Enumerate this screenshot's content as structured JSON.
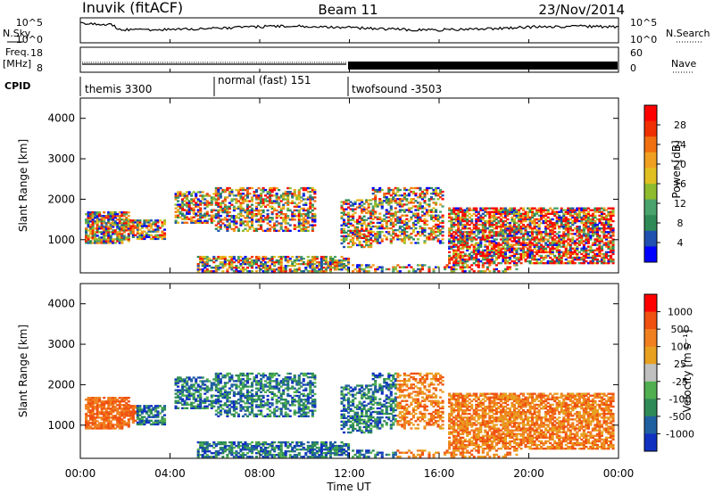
{
  "header": {
    "station": "Inuvik (fitACF)",
    "beam": "Beam 11",
    "date": "23/Nov/2014"
  },
  "summary": {
    "nsky_label": "N.Sky",
    "nsky_ticks": [
      "10^5",
      "10^0"
    ],
    "nsearch_label": "N.Search",
    "nsearch_ticks": [
      "10^5",
      "10^0"
    ],
    "freq_label": "Freq.",
    "freq_unit": "[MHz]",
    "freq_ticks": [
      "18",
      "8"
    ],
    "nave_label": "Nave",
    "nave_ticks": [
      "60",
      "0"
    ],
    "cpid_label": "CPID",
    "cpid_modes": [
      {
        "name": "themis 3300",
        "start": "00:00",
        "end": "06:00"
      },
      {
        "name": "normal (fast) 151",
        "start": "06:00",
        "end": "12:00"
      },
      {
        "name": "twofsound -3503",
        "start": "12:00",
        "end": "24:00"
      }
    ]
  },
  "colors": {
    "power_scale": [
      "#0000ff",
      "#2050b0",
      "#2e8b57",
      "#49a36b",
      "#8fbc2e",
      "#e0c020",
      "#f0a020",
      "#f07010",
      "#f03000",
      "#ff0000"
    ],
    "velocity_scale": [
      "#1030c0",
      "#2060a0",
      "#2e8b57",
      "#50b050",
      "#c0c0c0",
      "#e8a020",
      "#f08020",
      "#f05010",
      "#ff0000"
    ]
  },
  "chart_data": [
    {
      "type": "heatmap",
      "panel": "power",
      "ylabel": "Slant Range [km]",
      "ylim": [
        180,
        4500
      ],
      "yticks": [
        "1000",
        "2000",
        "3000",
        "4000"
      ],
      "xticks": [
        "00:00",
        "04:00",
        "08:00",
        "12:00",
        "16:00",
        "20:00",
        "00:00"
      ],
      "colorbar_label": "Power [dB]",
      "colorbar_ticks": [
        "4",
        "8",
        "12",
        "16",
        "20",
        "24",
        "28"
      ],
      "range": [
        0,
        30
      ]
    },
    {
      "type": "heatmap",
      "panel": "velocity",
      "ylabel": "Slant Range [km]",
      "ylim": [
        180,
        4500
      ],
      "yticks": [
        "1000",
        "2000",
        "3000",
        "4000"
      ],
      "xticks": [
        "00:00",
        "04:00",
        "08:00",
        "12:00",
        "16:00",
        "20:00",
        "00:00"
      ],
      "xlabel": "Time UT",
      "colorbar_label": "Velocity [m s⁻¹]",
      "colorbar_ticks": [
        "1000",
        "500",
        "100",
        "25",
        "-25",
        "-100",
        "-500",
        "-1000"
      ],
      "range": [
        -1000,
        1000
      ]
    }
  ]
}
